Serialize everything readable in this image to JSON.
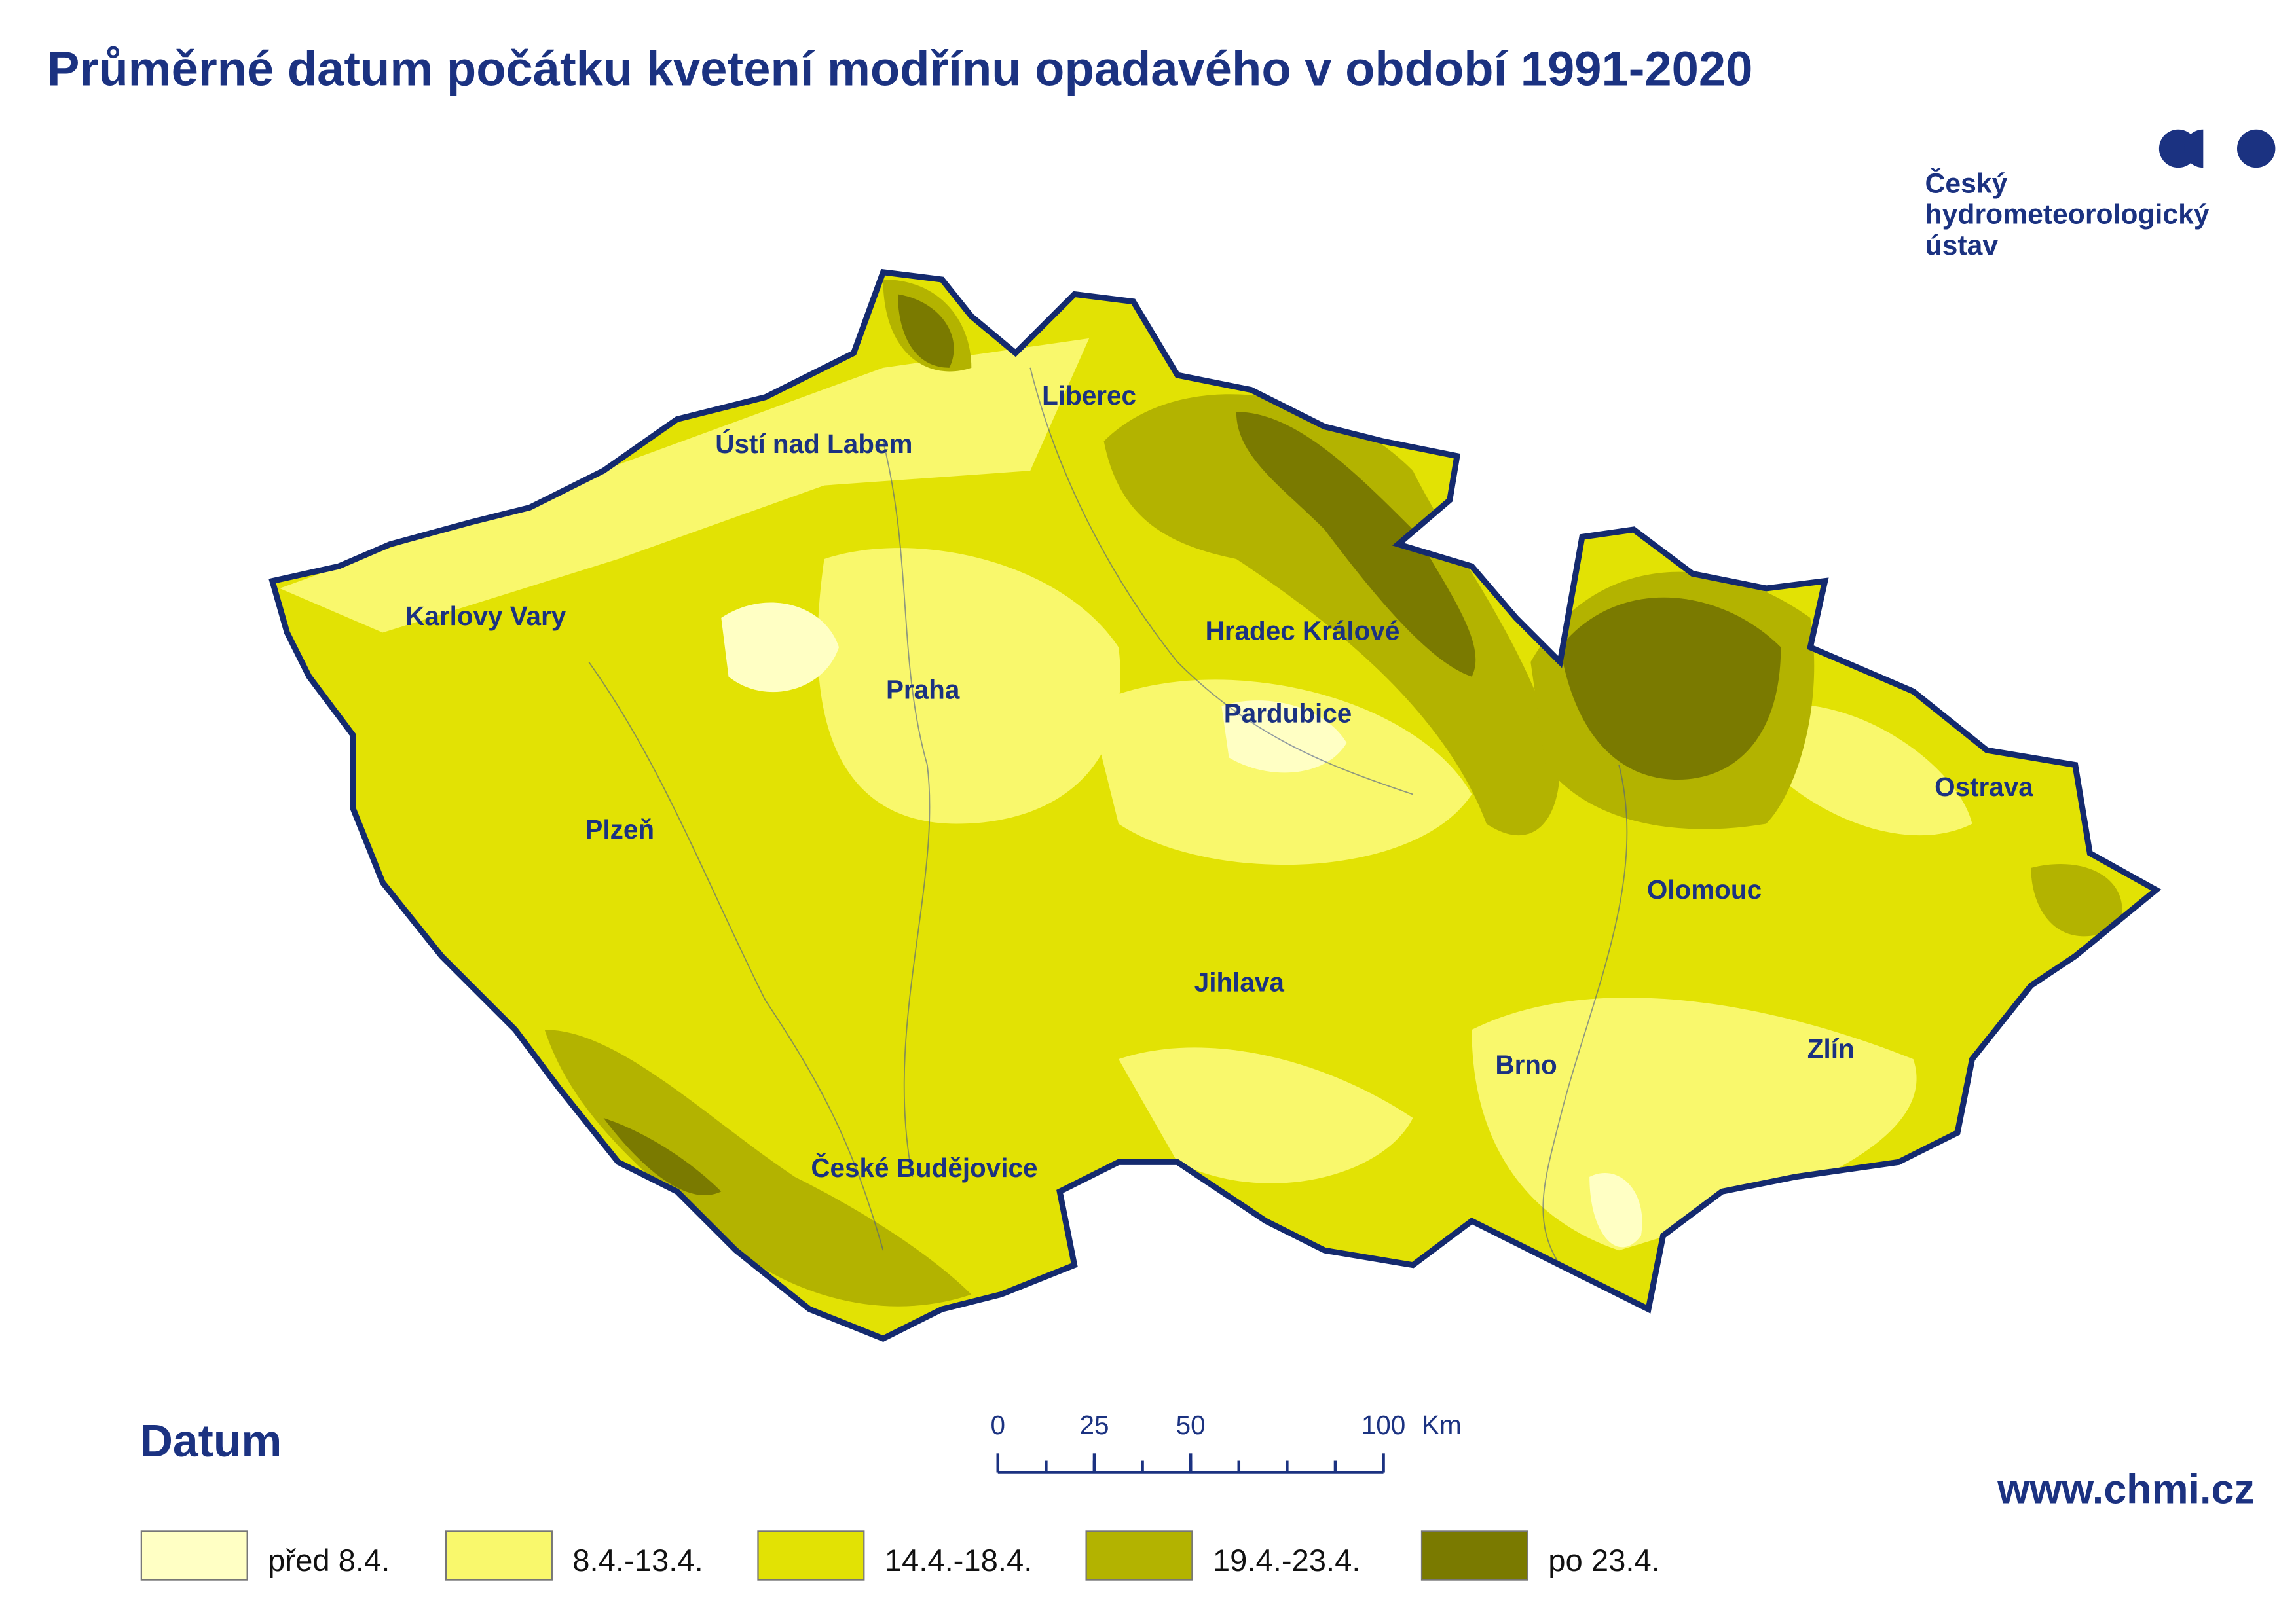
{
  "title": "Průměrné datum počátku kvetení modřínu opadavého v období 1991-2020",
  "logo": {
    "lines": [
      "Český",
      "hydrometeorologický",
      "ústav"
    ]
  },
  "map": {
    "cities": [
      "Liberec",
      "Ústí nad Labem",
      "Karlovy Vary",
      "Hradec Králové",
      "Praha",
      "Pardubice",
      "Ostrava",
      "Plzeň",
      "Olomouc",
      "Jihlava",
      "Zlín",
      "Brno",
      "České Budějovice"
    ]
  },
  "legend": {
    "title": "Datum",
    "items": [
      {
        "label": "před 8.4.",
        "color": "#ffffc4"
      },
      {
        "label": "8.4.-13.4.",
        "color": "#f9f86c"
      },
      {
        "label": "14.4.-18.4.",
        "color": "#e2e204"
      },
      {
        "label": "19.4.-23.4.",
        "color": "#b3b300"
      },
      {
        "label": "po 23.4.",
        "color": "#7a7a00"
      }
    ]
  },
  "scale_bar": {
    "ticks": [
      0,
      25,
      50,
      100
    ],
    "unit": "Km"
  },
  "url": "www.chmi.cz"
}
